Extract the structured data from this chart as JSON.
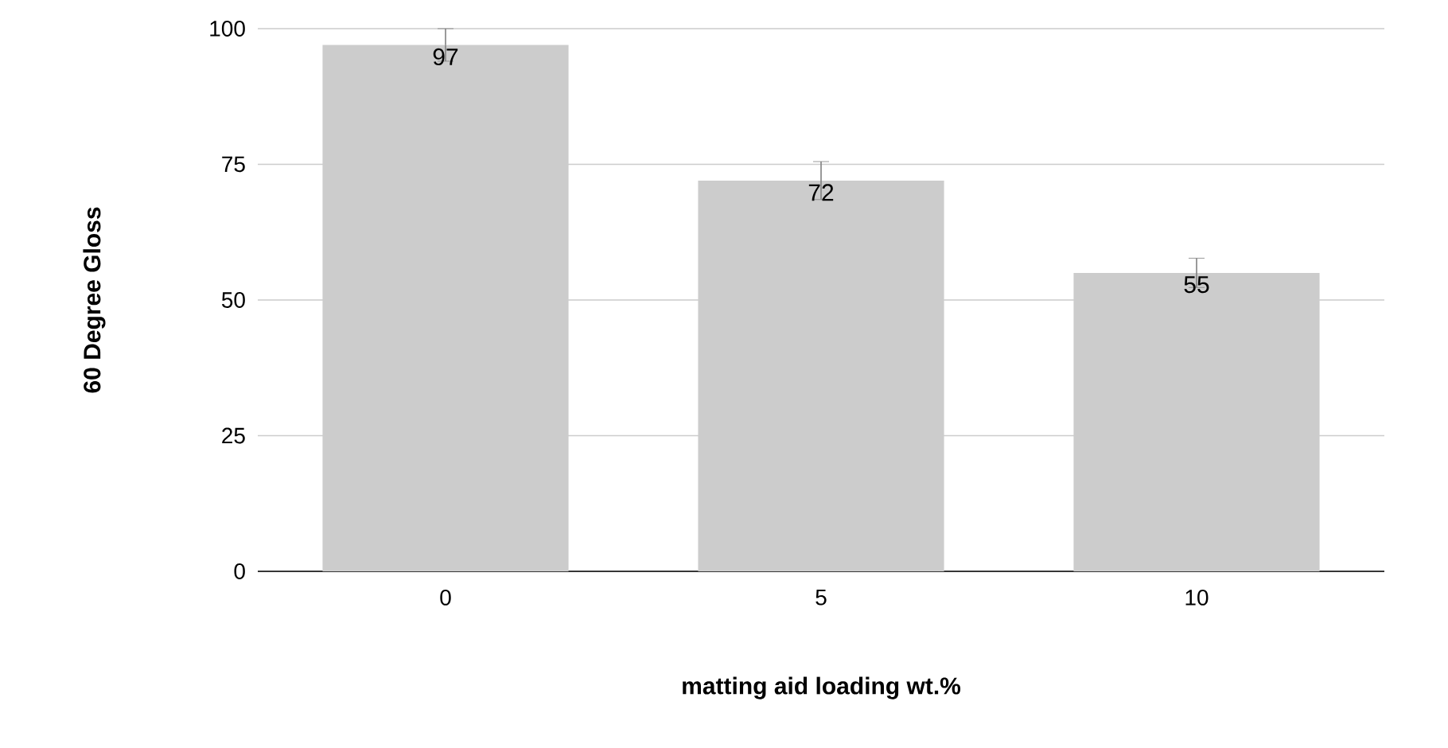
{
  "chart_data": {
    "type": "bar",
    "xlabel": "matting aid loading wt.%",
    "ylabel": "60 Degree Gloss",
    "categories": [
      "0",
      "5",
      "10"
    ],
    "values": [
      97,
      72,
      55
    ],
    "errors": [
      3,
      3.5,
      2.7
    ],
    "value_labels": [
      "97",
      "72",
      "55"
    ],
    "color": "#cccccc",
    "ylim": [
      0,
      100
    ],
    "yticks": [
      0,
      25,
      50,
      75,
      100
    ],
    "grid": "y"
  }
}
